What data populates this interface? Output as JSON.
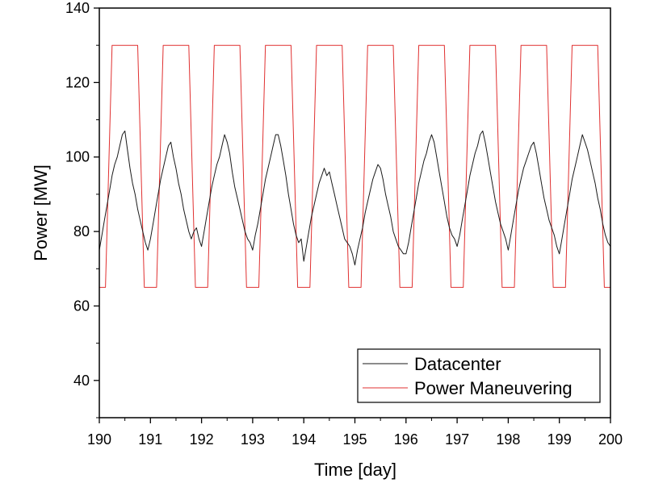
{
  "chart_data": {
    "type": "line",
    "xlabel": "Time [day]",
    "ylabel": "Power [MW]",
    "xlim": [
      190,
      200
    ],
    "ylim": [
      30,
      140
    ],
    "xticks": [
      190,
      191,
      192,
      193,
      194,
      195,
      196,
      197,
      198,
      199,
      200
    ],
    "yticks": [
      40,
      60,
      80,
      100,
      120,
      140
    ],
    "grid": false,
    "legend_position": "bottom-right",
    "series": [
      {
        "name": "Datacenter",
        "color": "#1a1a1a",
        "x": [
          190.0,
          190.05,
          190.1,
          190.15,
          190.2,
          190.25,
          190.3,
          190.35,
          190.4,
          190.45,
          190.5,
          190.55,
          190.6,
          190.65,
          190.7,
          190.75,
          190.8,
          190.85,
          190.9,
          190.95,
          191.0,
          191.05,
          191.1,
          191.15,
          191.2,
          191.25,
          191.3,
          191.35,
          191.4,
          191.45,
          191.5,
          191.55,
          191.6,
          191.65,
          191.7,
          191.75,
          191.8,
          191.85,
          191.9,
          191.95,
          192.0,
          192.05,
          192.1,
          192.15,
          192.2,
          192.25,
          192.3,
          192.35,
          192.4,
          192.45,
          192.5,
          192.55,
          192.6,
          192.65,
          192.7,
          192.75,
          192.8,
          192.85,
          192.9,
          192.95,
          193.0,
          193.05,
          193.1,
          193.15,
          193.2,
          193.25,
          193.3,
          193.35,
          193.4,
          193.45,
          193.5,
          193.55,
          193.6,
          193.65,
          193.7,
          193.75,
          193.8,
          193.85,
          193.9,
          193.95,
          194.0,
          194.05,
          194.1,
          194.15,
          194.2,
          194.25,
          194.3,
          194.35,
          194.4,
          194.45,
          194.5,
          194.55,
          194.6,
          194.65,
          194.7,
          194.75,
          194.8,
          194.85,
          194.9,
          194.95,
          195.0,
          195.05,
          195.1,
          195.15,
          195.2,
          195.25,
          195.3,
          195.35,
          195.4,
          195.45,
          195.5,
          195.55,
          195.6,
          195.65,
          195.7,
          195.75,
          195.8,
          195.85,
          195.9,
          195.95,
          196.0,
          196.05,
          196.1,
          196.15,
          196.2,
          196.25,
          196.3,
          196.35,
          196.4,
          196.45,
          196.5,
          196.55,
          196.6,
          196.65,
          196.7,
          196.75,
          196.8,
          196.85,
          196.9,
          196.95,
          197.0,
          197.05,
          197.1,
          197.15,
          197.2,
          197.25,
          197.3,
          197.35,
          197.4,
          197.45,
          197.5,
          197.55,
          197.6,
          197.65,
          197.7,
          197.75,
          197.8,
          197.85,
          197.9,
          197.95,
          198.0,
          198.05,
          198.1,
          198.15,
          198.2,
          198.25,
          198.3,
          198.35,
          198.4,
          198.45,
          198.5,
          198.55,
          198.6,
          198.65,
          198.7,
          198.75,
          198.8,
          198.85,
          198.9,
          198.95,
          199.0,
          199.05,
          199.1,
          199.15,
          199.2,
          199.25,
          199.3,
          199.35,
          199.4,
          199.45,
          199.5,
          199.55,
          199.6,
          199.65,
          199.7,
          199.75,
          199.8,
          199.85,
          199.9,
          199.95,
          200.0
        ],
        "y": [
          75,
          79,
          83,
          87,
          91,
          95,
          98,
          100,
          103,
          106,
          107,
          102,
          97,
          93,
          90,
          86,
          83,
          80,
          77,
          75,
          78,
          82,
          86,
          90,
          94,
          97,
          100,
          103,
          104,
          100,
          97,
          93,
          90,
          86,
          83,
          80,
          78,
          80,
          81,
          78,
          76,
          80,
          84,
          88,
          92,
          95,
          98,
          100,
          103,
          106,
          104,
          101,
          96,
          92,
          89,
          86,
          83,
          80,
          78,
          77,
          75,
          79,
          82,
          86,
          90,
          94,
          97,
          100,
          103,
          106,
          106,
          103,
          99,
          95,
          90,
          86,
          82,
          79,
          77,
          78,
          72,
          76,
          80,
          84,
          87,
          90,
          93,
          95,
          97,
          95,
          96,
          93,
          90,
          87,
          84,
          81,
          78,
          77,
          76,
          74,
          71,
          75,
          78,
          81,
          85,
          88,
          91,
          94,
          96,
          98,
          97,
          94,
          90,
          87,
          84,
          80,
          78,
          76,
          75,
          74,
          74,
          77,
          81,
          85,
          89,
          93,
          96,
          99,
          101,
          104,
          106,
          104,
          100,
          96,
          92,
          88,
          84,
          81,
          79,
          78,
          76,
          79,
          83,
          87,
          91,
          95,
          98,
          101,
          103,
          106,
          107,
          104,
          100,
          96,
          92,
          88,
          85,
          82,
          80,
          78,
          75,
          79,
          83,
          87,
          91,
          94,
          97,
          99,
          101,
          103,
          104,
          101,
          97,
          93,
          89,
          86,
          83,
          81,
          79,
          76,
          74,
          78,
          82,
          86,
          90,
          94,
          97,
          100,
          103,
          106,
          104,
          102,
          99,
          96,
          93,
          89,
          86,
          82,
          79,
          77,
          76
        ]
      },
      {
        "name": "Power Maneuvering",
        "color": "#e03030",
        "x": [
          190.0,
          190.12,
          190.25,
          190.75,
          190.88,
          191.12,
          191.25,
          191.75,
          191.88,
          192.12,
          192.25,
          192.75,
          192.88,
          193.12,
          193.25,
          193.75,
          193.88,
          194.12,
          194.25,
          194.75,
          194.88,
          195.12,
          195.25,
          195.75,
          195.88,
          196.12,
          196.25,
          196.75,
          196.88,
          197.12,
          197.25,
          197.75,
          197.88,
          198.12,
          198.25,
          198.75,
          198.88,
          199.12,
          199.25,
          199.75,
          199.88,
          200.0
        ],
        "y": [
          65,
          65,
          130,
          130,
          65,
          65,
          130,
          130,
          65,
          65,
          130,
          130,
          65,
          65,
          130,
          130,
          65,
          65,
          130,
          130,
          65,
          65,
          130,
          130,
          65,
          65,
          130,
          130,
          65,
          65,
          130,
          130,
          65,
          65,
          130,
          130,
          65,
          65,
          130,
          130,
          65,
          65
        ]
      }
    ]
  }
}
